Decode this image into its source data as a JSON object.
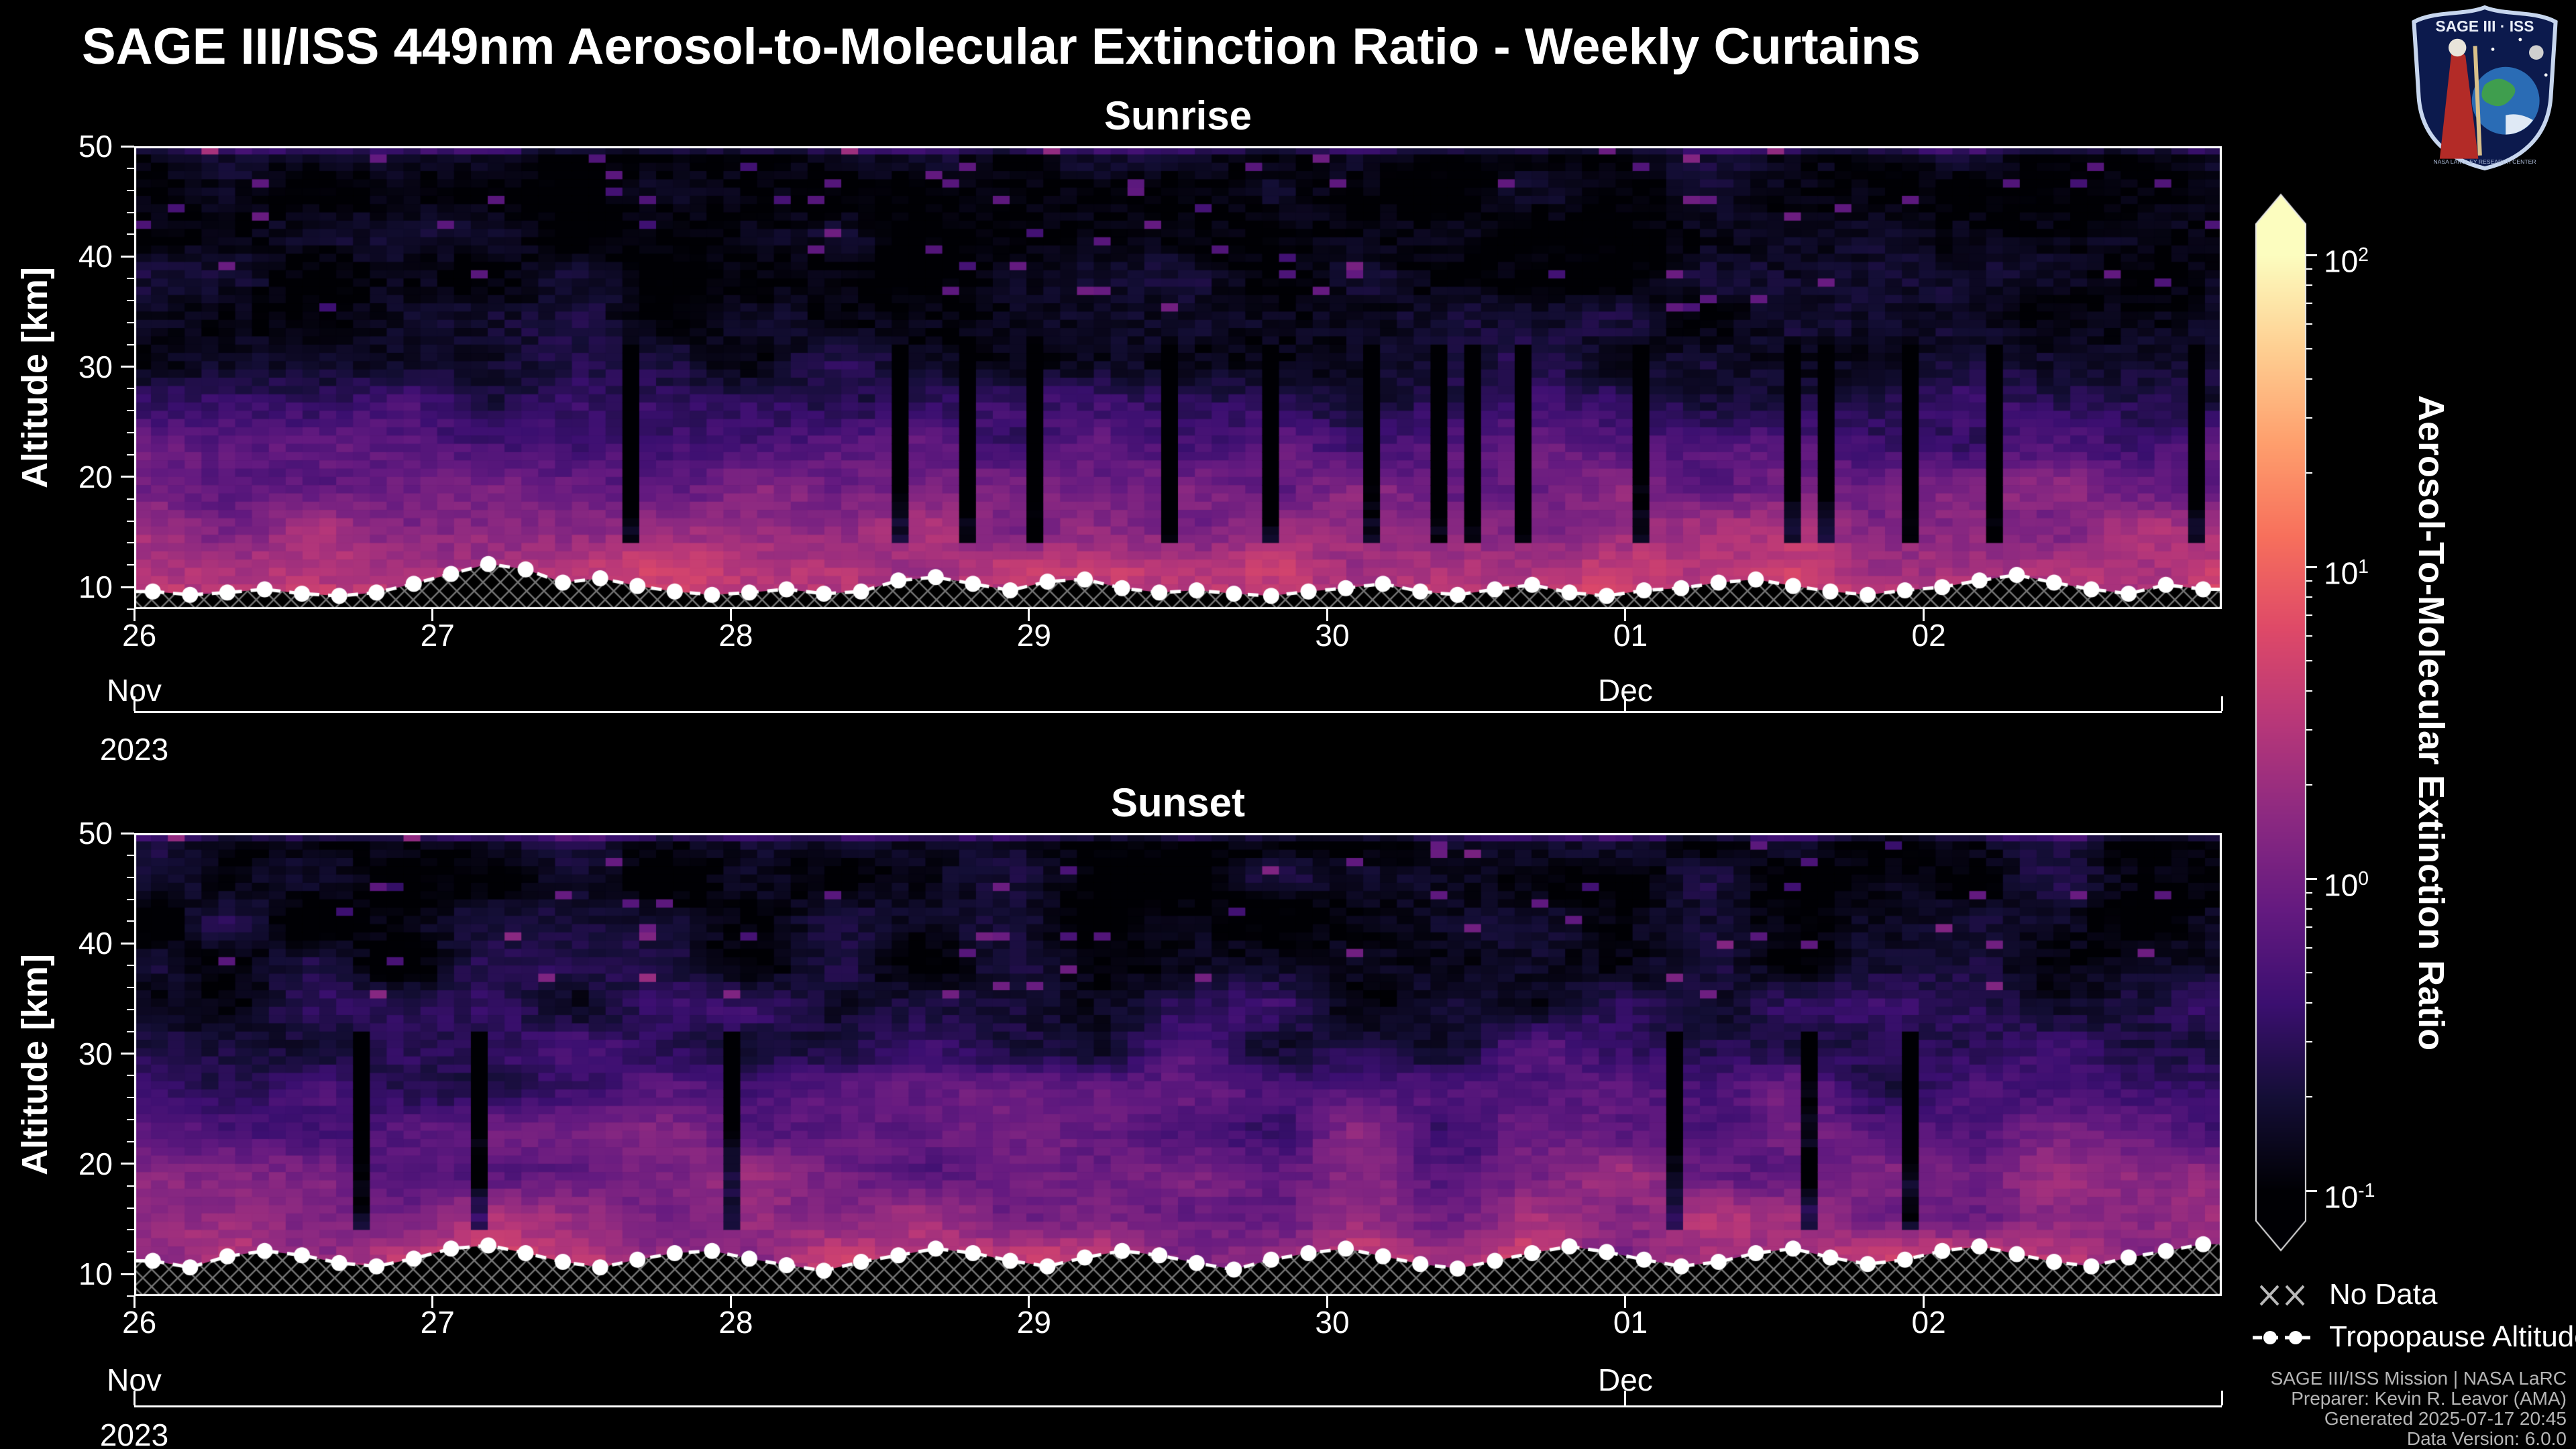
{
  "title": "SAGE III/ISS 449nm Aerosol-to-Molecular Extinction Ratio - Weekly Curtains",
  "panels": [
    {
      "title": "Sunrise",
      "ylabel": "Altitude [km]"
    },
    {
      "title": "Sunset",
      "ylabel": "Altitude [km]"
    }
  ],
  "xaxis": {
    "day_ticks": [
      "26",
      "27",
      "28",
      "29",
      "30",
      "01",
      "02"
    ],
    "months": [
      {
        "label": "Nov",
        "frac": 0.0
      },
      {
        "label": "Dec",
        "frac": 0.7143
      }
    ],
    "year": "2023"
  },
  "yaxis": {
    "ticks": [
      10,
      20,
      30,
      40,
      50
    ],
    "min": 8,
    "max": 50
  },
  "colorbar": {
    "label": "Aerosol-To-Molecular Extinction Ratio",
    "log_min": -1,
    "log_max": 2,
    "ticks": [
      {
        "exp": "2",
        "v": 2
      },
      {
        "exp": "1",
        "v": 1
      },
      {
        "exp": "0",
        "v": 0
      },
      {
        "exp": "-1",
        "v": -1
      }
    ],
    "palette": [
      [
        0,
        "#000004"
      ],
      [
        0.1,
        "#140e36"
      ],
      [
        0.2,
        "#3b0f70"
      ],
      [
        0.3,
        "#641a80"
      ],
      [
        0.4,
        "#8c2981"
      ],
      [
        0.5,
        "#b73779"
      ],
      [
        0.6,
        "#de4968"
      ],
      [
        0.7,
        "#f7705c"
      ],
      [
        0.8,
        "#fe9f6d"
      ],
      [
        0.9,
        "#fecf92"
      ],
      [
        1,
        "#fcfdbf"
      ]
    ]
  },
  "legend": {
    "no_data": "No Data",
    "tropopause": "Tropopause Altitude"
  },
  "footer": [
    "SAGE III/ISS Mission | NASA LaRC",
    "Preparer: Kevin R. Leavor (AMA)",
    "Generated 2025-07-17 20:45",
    "Data Version: 6.0.0"
  ],
  "logo": {
    "title": "SAGE III · ISS",
    "subtitle": "NASA LANGLEY RESEARCH CENTER"
  },
  "chart_data": [
    {
      "type": "heatmap",
      "panel": "Sunrise",
      "x_domain": [
        "2023-11-26",
        "2023-12-03"
      ],
      "x_day_ticks": [
        "26",
        "27",
        "28",
        "29",
        "30",
        "01",
        "02"
      ],
      "y_range_km": [
        8,
        50
      ],
      "color_scale": {
        "type": "log",
        "min": 0.1,
        "max": 100,
        "colormap": "magma",
        "label": "Aerosol-To-Molecular Extinction Ratio"
      },
      "mean_profile": {
        "alt_km": [
          8,
          10,
          12,
          14,
          16,
          18,
          20,
          22,
          24,
          26,
          28,
          30,
          33,
          36,
          40,
          45,
          50
        ],
        "log10_ratio": [
          0.5,
          0.55,
          0.48,
          0.33,
          0.2,
          0.08,
          -0.05,
          -0.18,
          -0.33,
          -0.48,
          -0.62,
          -0.72,
          -0.82,
          -0.9,
          -0.94,
          -0.95,
          -0.9
        ]
      },
      "texture": {
        "cols": 124,
        "rows": 56,
        "smooth_noise": 0.22,
        "speckle": 0.13,
        "dark_col_prob": 0.13,
        "dark_col_depth": 1.15,
        "seed": 20231126
      },
      "tropopause_km": [
        9.6,
        9.3,
        9.5,
        9.8,
        9.4,
        9.2,
        9.5,
        10.3,
        11.2,
        12.1,
        11.6,
        10.4,
        10.8,
        10.1,
        9.6,
        9.3,
        9.5,
        9.8,
        9.4,
        9.6,
        10.6,
        10.9,
        10.3,
        9.7,
        10.5,
        10.7,
        9.9,
        9.5,
        9.7,
        9.4,
        9.2,
        9.6,
        9.9,
        10.3,
        9.6,
        9.3,
        9.8,
        10.2,
        9.5,
        9.2,
        9.7,
        9.9,
        10.4,
        10.7,
        10.1,
        9.6,
        9.3,
        9.7,
        10.0,
        10.6,
        11.1,
        10.4,
        9.8,
        9.4,
        10.2,
        9.8
      ]
    },
    {
      "type": "heatmap",
      "panel": "Sunset",
      "x_domain": [
        "2023-11-26",
        "2023-12-03"
      ],
      "x_day_ticks": [
        "26",
        "27",
        "28",
        "29",
        "30",
        "01",
        "02"
      ],
      "y_range_km": [
        8,
        50
      ],
      "color_scale": {
        "type": "log",
        "min": 0.1,
        "max": 100,
        "colormap": "magma",
        "label": "Aerosol-To-Molecular Extinction Ratio"
      },
      "mean_profile": {
        "alt_km": [
          8,
          11,
          13,
          16,
          19,
          22,
          25,
          28,
          31,
          34,
          38,
          44,
          50
        ],
        "log10_ratio": [
          0.35,
          0.42,
          0.32,
          0.18,
          0.02,
          -0.1,
          -0.22,
          -0.38,
          -0.52,
          -0.68,
          -0.82,
          -0.9,
          -0.85
        ]
      },
      "texture": {
        "cols": 124,
        "rows": 56,
        "smooth_noise": 0.32,
        "speckle": 0.12,
        "dark_col_prob": 0.05,
        "dark_col_depth": 0.9,
        "seed": 20231202
      },
      "tropopause_km": [
        11.2,
        10.6,
        11.6,
        12.1,
        11.7,
        11.0,
        10.7,
        11.4,
        12.3,
        12.6,
        11.9,
        11.1,
        10.6,
        11.3,
        11.9,
        12.1,
        11.4,
        10.8,
        10.3,
        11.1,
        11.7,
        12.3,
        11.9,
        11.2,
        10.7,
        11.5,
        12.1,
        11.7,
        11.0,
        10.4,
        11.3,
        11.9,
        12.3,
        11.6,
        10.9,
        10.5,
        11.2,
        11.9,
        12.5,
        12.0,
        11.3,
        10.7,
        11.1,
        11.9,
        12.3,
        11.5,
        10.9,
        11.3,
        12.1,
        12.5,
        11.8,
        11.1,
        10.7,
        11.5,
        12.1,
        12.7
      ]
    }
  ]
}
